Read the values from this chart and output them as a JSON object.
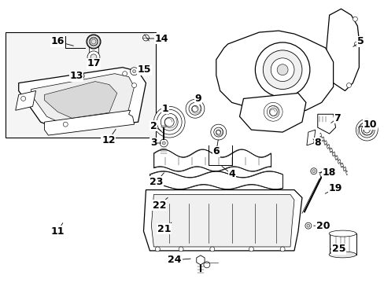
{
  "bg": "#ffffff",
  "lw_thin": 0.6,
  "lw_med": 0.9,
  "lw_thick": 1.2,
  "label_fs": 9,
  "label_fs_sm": 8
}
